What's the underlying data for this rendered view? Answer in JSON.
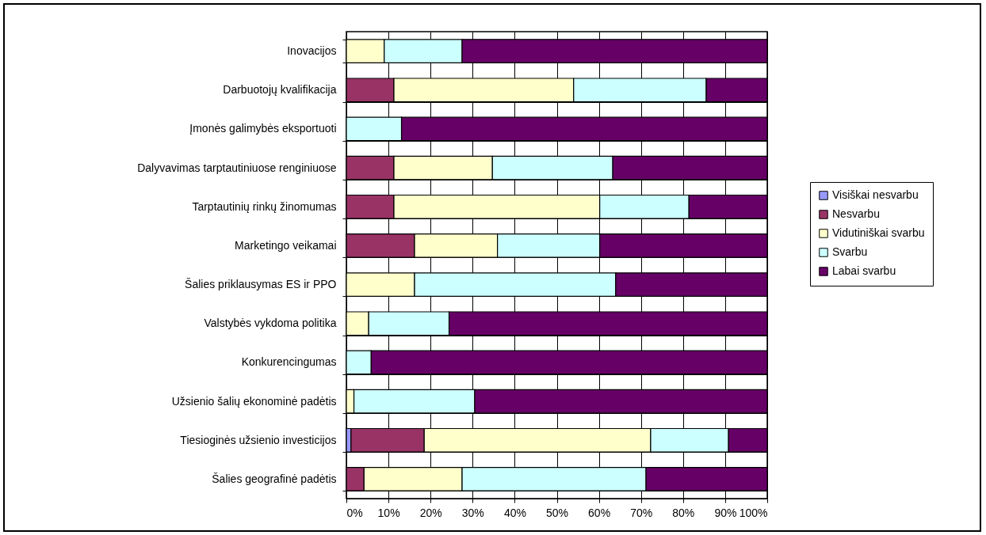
{
  "chart_data": {
    "type": "bar",
    "orientation": "horizontal",
    "stacked": true,
    "grid": true,
    "legend": "right",
    "categories": [
      "Inovacijos",
      "Darbuotojų kvalifikacija",
      "Įmonės galimybės eksportuoti",
      "Dalyvavimas tarptautiniuose renginiuose",
      "Tarptautinių rinkų žinomumas",
      "Marketingo veikamai",
      "Šalies priklausymas ES ir PPO",
      "Valstybės vykdoma politika",
      "Konkurencingumas",
      "Užsienio šalių ekonominė padėtis",
      "Tiesioginės užsienio investicijos",
      "Šalies geografinė padėtis"
    ],
    "series": [
      {
        "name": "Visiškai nesvarbu",
        "color": "#9999ff",
        "values": [
          null,
          null,
          null,
          null,
          null,
          null,
          null,
          null,
          null,
          null,
          1.1,
          null
        ]
      },
      {
        "name": "Nesvarbu",
        "color": "#993366",
        "values": [
          null,
          11.3,
          null,
          11.3,
          11.3,
          16.2,
          null,
          null,
          null,
          null,
          17.4,
          4.2
        ]
      },
      {
        "name": "Vidutiniškai svarbu",
        "color": "#ffffcc",
        "values": [
          9,
          42.7,
          null,
          23.4,
          48.9,
          19.7,
          16.2,
          5.3,
          null,
          1.8,
          53.8,
          23.3
        ]
      },
      {
        "name": "Svarbu",
        "color": "#ccffff",
        "values": [
          18.5,
          31.5,
          13.1,
          28.6,
          21.2,
          24.3,
          47.8,
          19.1,
          5.9,
          28.7,
          18.5,
          43.7
        ]
      },
      {
        "name": "Labai svarbu",
        "color": "#660066",
        "values": [
          72.5,
          14.5,
          86.9,
          36.7,
          18.6,
          39.8,
          36,
          75.6,
          94.1,
          69.5,
          9.2,
          28.8
        ]
      }
    ],
    "xlim": [
      0,
      100
    ],
    "xticks": [
      {
        "value": 0,
        "label": "0%"
      },
      {
        "value": 10,
        "label": "10%"
      },
      {
        "value": 20,
        "label": "20%"
      },
      {
        "value": 30,
        "label": "30%"
      },
      {
        "value": 40,
        "label": "40%"
      },
      {
        "value": 50,
        "label": "50%"
      },
      {
        "value": 60,
        "label": "60%"
      },
      {
        "value": 70,
        "label": "70%"
      },
      {
        "value": 80,
        "label": "80%"
      },
      {
        "value": 90,
        "label": "90%"
      },
      {
        "value": 100,
        "label": "100%"
      }
    ]
  }
}
